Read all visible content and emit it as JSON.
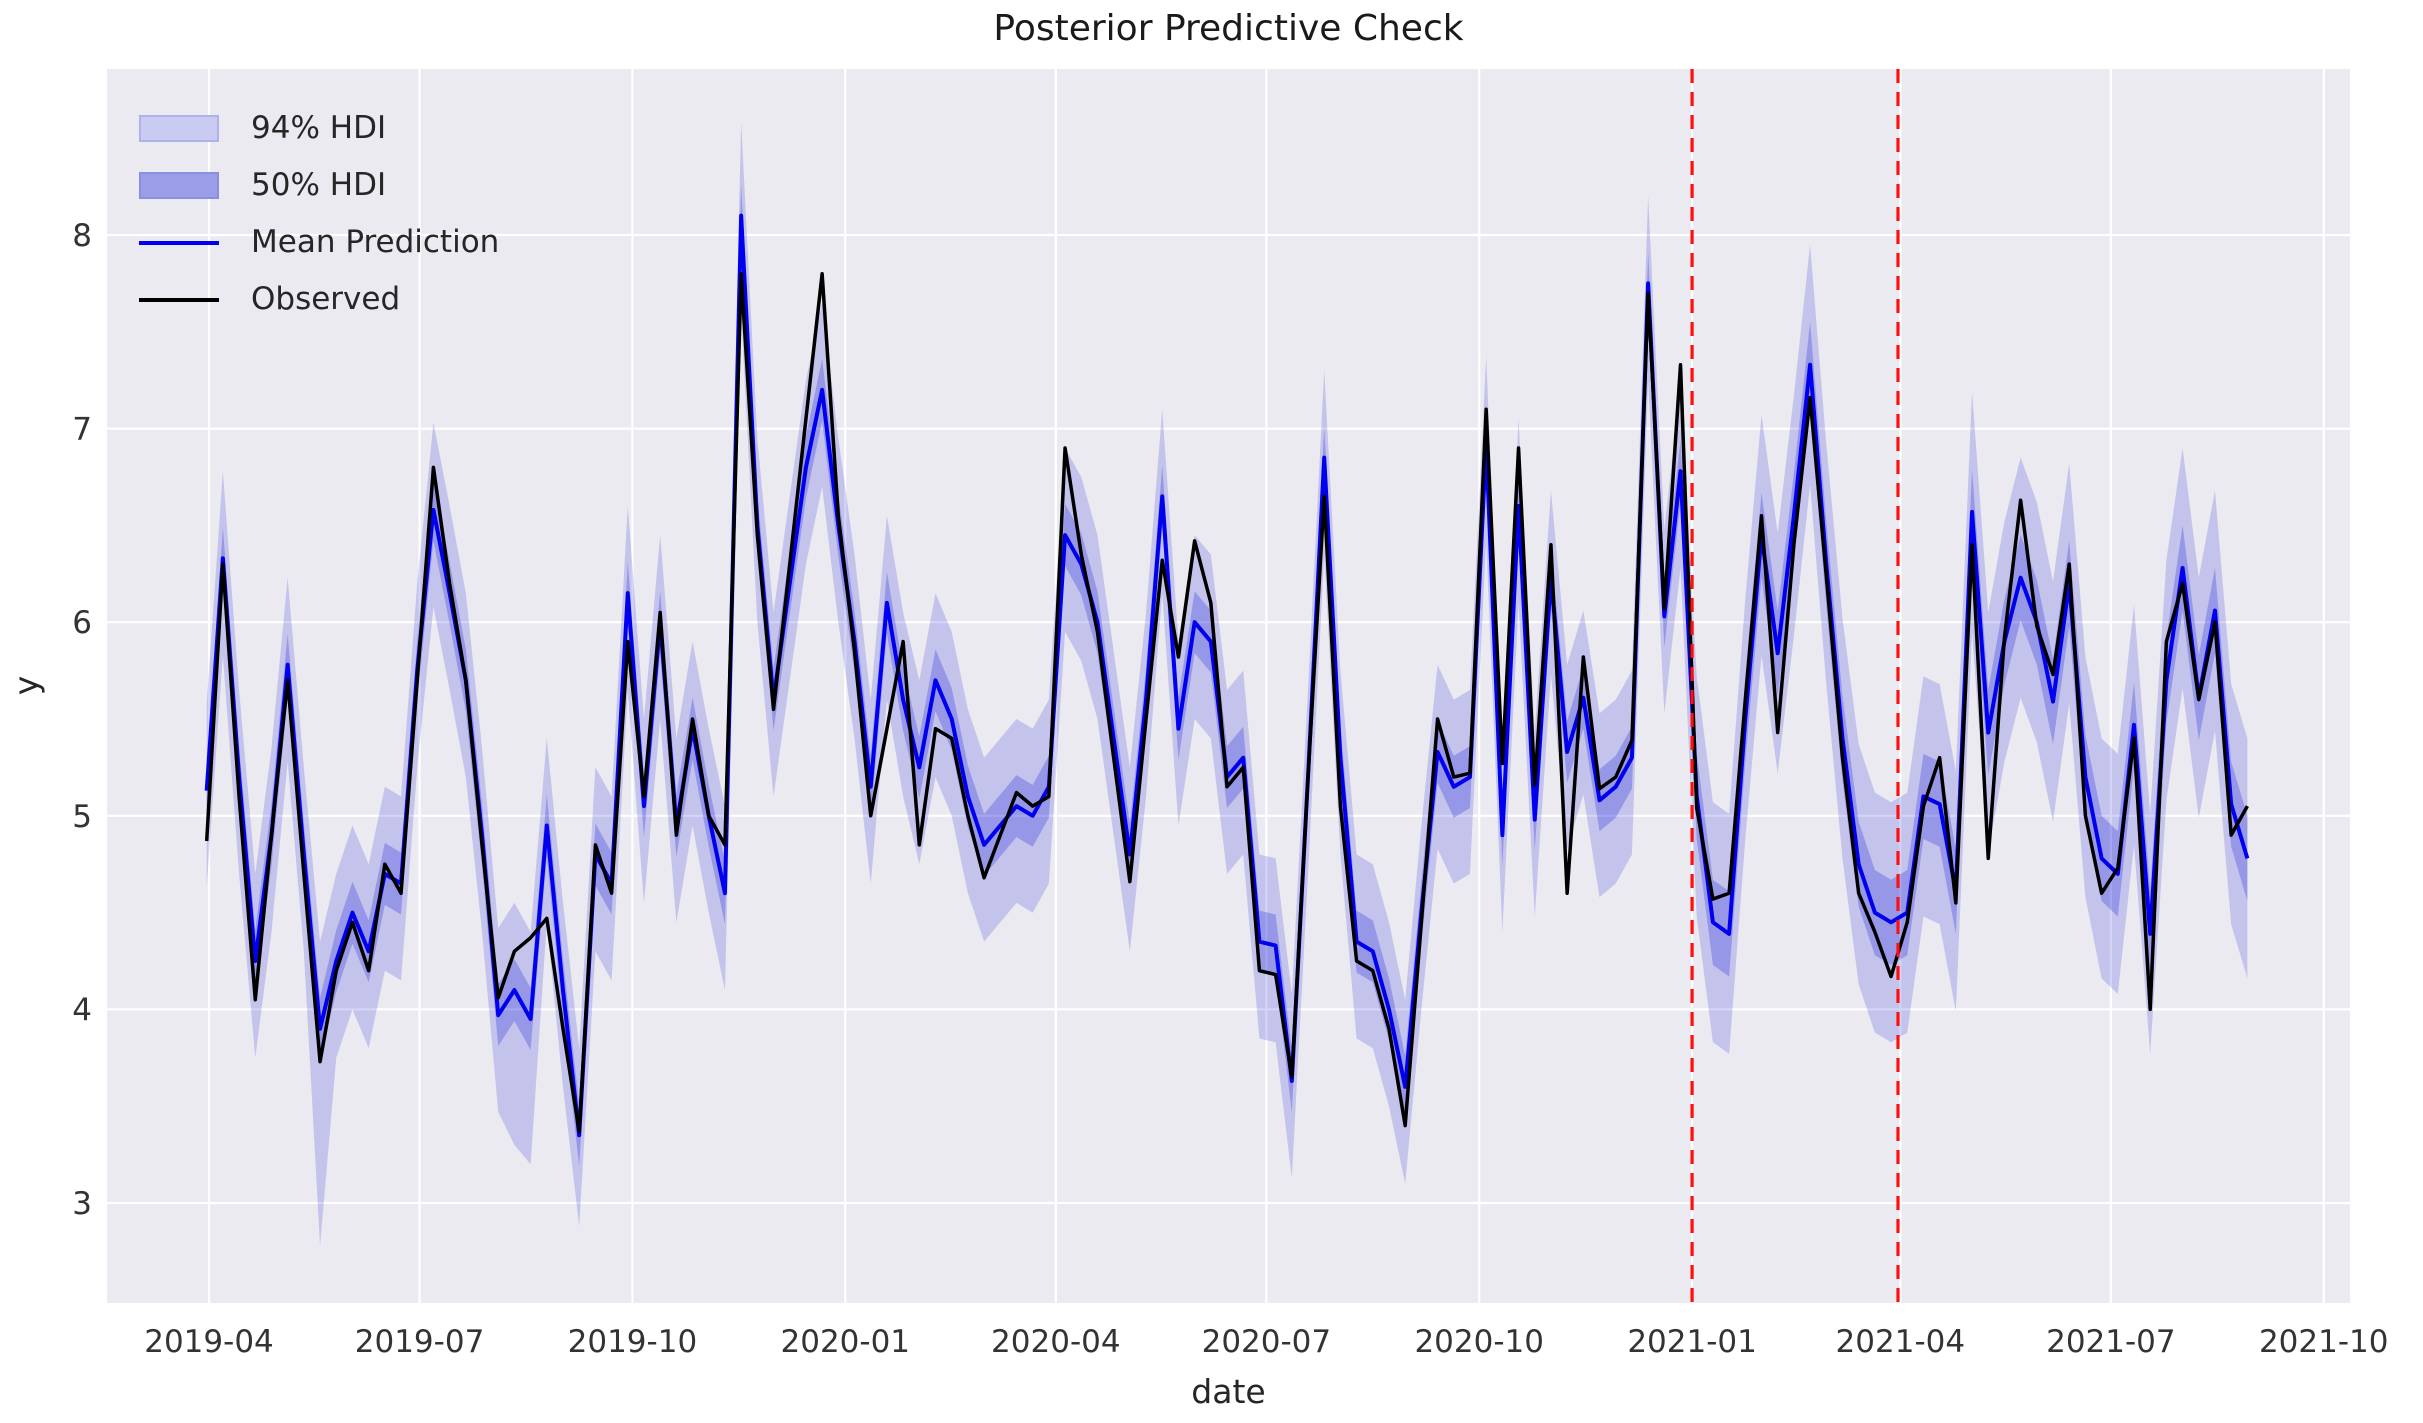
{
  "title": "Posterior Predictive Check",
  "xlabel": "date",
  "ylabel": "y",
  "legend": {
    "items": [
      {
        "label": "94% HDI",
        "swatch": "band-94-swatch"
      },
      {
        "label": "50% HDI",
        "swatch": "band-50-swatch"
      },
      {
        "label": "Mean Prediction",
        "swatch": "mean-line-swatch"
      },
      {
        "label": "Observed",
        "swatch": "observed-line-swatch"
      }
    ],
    "position": "upper left"
  },
  "colors": {
    "axes_background": "#eaeaf0",
    "grid": "#ffffff",
    "observed": "#000000",
    "mean_prediction": "#0000ee",
    "hdi_94_fill": "rgba(40,40,220,0.20)",
    "hdi_50_fill": "rgba(40,40,220,0.28)",
    "vline": "#ff0f0f",
    "tick_text": "#333333"
  },
  "chart_data": {
    "type": "line",
    "title": "Posterior Predictive Check",
    "xlabel": "date",
    "ylabel": "y",
    "grid": true,
    "legend_position": "upper left",
    "ylim": [
      2.48,
      8.84
    ],
    "x_tick_labels": [
      "2019-04",
      "2019-07",
      "2019-10",
      "2020-01",
      "2020-04",
      "2020-07",
      "2020-10",
      "2021-01",
      "2021-04",
      "2021-07",
      "2021-10"
    ],
    "y_tick_labels": [
      3,
      4,
      5,
      6,
      7,
      8
    ],
    "vlines": [
      "2021-01-01",
      "2021-03-31"
    ],
    "x": [
      "2019-03-31",
      "2019-04-07",
      "2019-04-14",
      "2019-04-21",
      "2019-04-28",
      "2019-05-05",
      "2019-05-12",
      "2019-05-19",
      "2019-05-26",
      "2019-06-02",
      "2019-06-09",
      "2019-06-16",
      "2019-06-23",
      "2019-06-30",
      "2019-07-07",
      "2019-07-14",
      "2019-07-21",
      "2019-07-28",
      "2019-08-04",
      "2019-08-11",
      "2019-08-18",
      "2019-08-25",
      "2019-09-01",
      "2019-09-08",
      "2019-09-15",
      "2019-09-22",
      "2019-09-29",
      "2019-10-06",
      "2019-10-13",
      "2019-10-20",
      "2019-10-27",
      "2019-11-03",
      "2019-11-10",
      "2019-11-17",
      "2019-11-24",
      "2019-12-01",
      "2019-12-08",
      "2019-12-15",
      "2019-12-22",
      "2019-12-29",
      "2020-01-05",
      "2020-01-12",
      "2020-01-19",
      "2020-01-26",
      "2020-02-02",
      "2020-02-09",
      "2020-02-16",
      "2020-02-23",
      "2020-03-01",
      "2020-03-08",
      "2020-03-15",
      "2020-03-22",
      "2020-03-29",
      "2020-04-05",
      "2020-04-12",
      "2020-04-19",
      "2020-04-26",
      "2020-05-03",
      "2020-05-10",
      "2020-05-17",
      "2020-05-24",
      "2020-05-31",
      "2020-06-07",
      "2020-06-14",
      "2020-06-21",
      "2020-06-28",
      "2020-07-05",
      "2020-07-12",
      "2020-07-19",
      "2020-07-26",
      "2020-08-02",
      "2020-08-09",
      "2020-08-16",
      "2020-08-23",
      "2020-08-30",
      "2020-09-06",
      "2020-09-13",
      "2020-09-20",
      "2020-09-27",
      "2020-10-04",
      "2020-10-11",
      "2020-10-18",
      "2020-10-25",
      "2020-11-01",
      "2020-11-08",
      "2020-11-15",
      "2020-11-22",
      "2020-11-29",
      "2020-12-06",
      "2020-12-13",
      "2020-12-20",
      "2020-12-27",
      "2021-01-03",
      "2021-01-10",
      "2021-01-17",
      "2021-01-24",
      "2021-01-31",
      "2021-02-07",
      "2021-02-14",
      "2021-02-21",
      "2021-02-28",
      "2021-03-07",
      "2021-03-14",
      "2021-03-21",
      "2021-03-28",
      "2021-04-04",
      "2021-04-11",
      "2021-04-18",
      "2021-04-25",
      "2021-05-02",
      "2021-05-09",
      "2021-05-16",
      "2021-05-23",
      "2021-05-30",
      "2021-06-06",
      "2021-06-13",
      "2021-06-20",
      "2021-06-27",
      "2021-07-04",
      "2021-07-11",
      "2021-07-18",
      "2021-07-25",
      "2021-08-01",
      "2021-08-08",
      "2021-08-15",
      "2021-08-22",
      "2021-08-29"
    ],
    "series": [
      {
        "name": "Observed",
        "values": [
          4.87,
          6.3,
          5.1,
          4.05,
          4.9,
          5.7,
          4.7,
          3.73,
          4.2,
          4.45,
          4.2,
          4.75,
          4.6,
          5.7,
          6.8,
          6.2,
          5.7,
          4.85,
          4.06,
          4.3,
          4.37,
          4.47,
          3.9,
          3.37,
          4.85,
          4.6,
          5.9,
          5.1,
          6.05,
          4.9,
          5.5,
          5.0,
          4.85,
          7.8,
          6.45,
          5.55,
          6.3,
          7.05,
          7.8,
          6.55,
          5.85,
          5.0,
          5.45,
          5.9,
          4.85,
          5.45,
          5.4,
          5.0,
          4.68,
          4.9,
          5.12,
          5.05,
          5.1,
          6.9,
          6.35,
          5.95,
          5.3,
          4.66,
          5.5,
          6.32,
          5.82,
          6.42,
          6.1,
          5.15,
          5.25,
          4.2,
          4.18,
          3.65,
          5.2,
          6.65,
          5.05,
          4.25,
          4.2,
          3.9,
          3.4,
          4.45,
          5.5,
          5.2,
          5.22,
          7.1,
          5.27,
          6.9,
          5.16,
          6.4,
          4.6,
          5.82,
          5.14,
          5.2,
          5.39,
          7.7,
          6.07,
          7.33,
          5.04,
          4.57,
          4.6,
          5.6,
          6.55,
          5.43,
          6.4,
          7.16,
          6.24,
          5.3,
          4.6,
          4.4,
          4.17,
          4.45,
          5.05,
          5.3,
          4.55,
          6.4,
          4.78,
          5.92,
          6.63,
          5.98,
          5.73,
          6.3,
          5.0,
          4.6,
          4.73,
          5.4,
          4.0,
          5.9,
          6.2,
          5.6,
          6.0,
          4.9,
          5.05
        ]
      },
      {
        "name": "Mean Prediction",
        "values": [
          5.13,
          6.33,
          5.2,
          4.25,
          4.9,
          5.78,
          4.8,
          3.9,
          4.25,
          4.5,
          4.3,
          4.7,
          4.65,
          5.75,
          6.58,
          6.15,
          5.7,
          4.9,
          3.97,
          4.1,
          3.95,
          4.95,
          4.1,
          3.35,
          4.8,
          4.65,
          6.15,
          5.05,
          6.0,
          4.95,
          5.45,
          5.0,
          4.6,
          8.1,
          6.5,
          5.6,
          6.2,
          6.8,
          7.2,
          6.5,
          5.9,
          5.15,
          6.1,
          5.6,
          5.25,
          5.7,
          5.5,
          5.1,
          4.85,
          4.95,
          5.05,
          5.0,
          5.15,
          6.45,
          6.3,
          6.0,
          5.4,
          4.8,
          5.6,
          6.65,
          5.45,
          6.0,
          5.9,
          5.2,
          5.3,
          4.35,
          4.33,
          3.63,
          5.2,
          6.85,
          5.3,
          4.35,
          4.3,
          4.0,
          3.6,
          4.5,
          5.33,
          5.15,
          5.2,
          6.92,
          4.9,
          6.6,
          4.98,
          6.23,
          5.33,
          5.61,
          5.08,
          5.15,
          5.3,
          7.75,
          6.03,
          6.78,
          5.1,
          4.45,
          4.39,
          5.5,
          6.45,
          5.84,
          6.55,
          7.33,
          6.3,
          5.4,
          4.75,
          4.5,
          4.45,
          4.5,
          5.1,
          5.06,
          4.61,
          6.57,
          5.43,
          5.9,
          6.23,
          6.0,
          5.59,
          6.2,
          5.2,
          4.78,
          4.7,
          5.47,
          4.39,
          5.7,
          6.28,
          5.61,
          6.06,
          5.06,
          4.78
        ]
      },
      {
        "name": "94% HDI upper",
        "values": [
          5.58,
          6.78,
          5.65,
          4.7,
          5.35,
          6.23,
          5.25,
          4.35,
          4.7,
          4.95,
          4.75,
          5.15,
          5.1,
          6.2,
          7.03,
          6.6,
          6.15,
          5.35,
          4.42,
          4.55,
          4.4,
          5.4,
          4.55,
          3.8,
          5.25,
          5.1,
          6.6,
          5.5,
          6.45,
          5.4,
          5.9,
          5.45,
          5.05,
          8.58,
          6.95,
          6.05,
          6.65,
          7.25,
          7.65,
          6.95,
          6.35,
          5.6,
          6.55,
          6.05,
          5.7,
          6.15,
          5.95,
          5.55,
          5.3,
          5.4,
          5.5,
          5.45,
          5.6,
          6.9,
          6.75,
          6.45,
          5.85,
          5.25,
          6.05,
          7.1,
          5.9,
          6.45,
          6.35,
          5.65,
          5.75,
          4.8,
          4.78,
          4.08,
          5.65,
          7.3,
          5.75,
          4.8,
          4.75,
          4.45,
          4.05,
          4.95,
          5.78,
          5.6,
          5.65,
          7.37,
          5.35,
          7.05,
          5.43,
          6.68,
          5.78,
          6.06,
          5.53,
          5.6,
          5.75,
          8.2,
          6.48,
          7.23,
          5.72,
          5.07,
          5.01,
          6.12,
          7.07,
          6.46,
          7.17,
          7.95,
          6.92,
          6.02,
          5.37,
          5.12,
          5.07,
          5.12,
          5.72,
          5.68,
          5.23,
          7.19,
          6.05,
          6.52,
          6.85,
          6.62,
          6.21,
          6.82,
          5.82,
          5.4,
          5.32,
          6.09,
          5.01,
          6.32,
          6.9,
          6.23,
          6.68,
          5.68,
          5.4
        ]
      },
      {
        "name": "94% HDI lower",
        "values": [
          4.63,
          5.83,
          4.7,
          3.75,
          4.4,
          5.28,
          4.3,
          2.78,
          3.75,
          4.0,
          3.8,
          4.2,
          4.15,
          5.25,
          6.08,
          5.65,
          5.2,
          4.4,
          3.47,
          3.3,
          3.2,
          4.45,
          3.6,
          2.88,
          4.3,
          4.15,
          5.65,
          4.55,
          5.5,
          4.45,
          4.95,
          4.5,
          4.1,
          7.6,
          6.0,
          5.1,
          5.7,
          6.3,
          6.7,
          6.0,
          5.4,
          4.65,
          5.6,
          5.1,
          4.75,
          5.2,
          5.0,
          4.6,
          4.35,
          4.45,
          4.55,
          4.5,
          4.65,
          5.95,
          5.8,
          5.5,
          4.9,
          4.3,
          5.1,
          6.15,
          4.95,
          5.5,
          5.4,
          4.7,
          4.8,
          3.85,
          3.83,
          3.13,
          4.7,
          6.35,
          4.8,
          3.85,
          3.8,
          3.5,
          3.1,
          4.0,
          4.83,
          4.65,
          4.7,
          6.42,
          4.4,
          6.1,
          4.48,
          5.73,
          4.83,
          5.11,
          4.58,
          4.65,
          4.8,
          7.25,
          5.53,
          6.28,
          4.48,
          3.83,
          3.77,
          4.88,
          5.83,
          5.22,
          5.93,
          6.71,
          5.68,
          4.78,
          4.13,
          3.88,
          3.83,
          3.88,
          4.48,
          4.44,
          3.99,
          5.95,
          4.81,
          5.28,
          5.61,
          5.38,
          4.97,
          5.58,
          4.58,
          4.16,
          4.08,
          4.85,
          3.77,
          5.08,
          5.66,
          4.99,
          5.44,
          4.44,
          4.16
        ]
      },
      {
        "name": "50% HDI upper",
        "values": [
          5.29,
          6.49,
          5.36,
          4.41,
          5.06,
          5.94,
          4.96,
          4.06,
          4.41,
          4.66,
          4.46,
          4.86,
          4.81,
          5.91,
          6.74,
          6.31,
          5.86,
          5.06,
          4.13,
          4.26,
          4.11,
          5.11,
          4.26,
          3.51,
          4.96,
          4.81,
          6.31,
          5.21,
          6.16,
          5.11,
          5.61,
          5.16,
          4.76,
          8.26,
          6.66,
          5.76,
          6.36,
          6.96,
          7.36,
          6.66,
          6.06,
          5.31,
          6.26,
          5.76,
          5.41,
          5.86,
          5.66,
          5.26,
          5.01,
          5.11,
          5.21,
          5.16,
          5.31,
          6.61,
          6.46,
          6.16,
          5.56,
          4.96,
          5.76,
          6.81,
          5.61,
          6.16,
          6.06,
          5.36,
          5.46,
          4.51,
          4.49,
          3.79,
          5.36,
          7.01,
          5.46,
          4.51,
          4.46,
          4.16,
          3.76,
          4.66,
          5.49,
          5.31,
          5.36,
          7.08,
          5.06,
          6.76,
          5.14,
          6.39,
          5.49,
          5.77,
          5.24,
          5.31,
          5.46,
          7.91,
          6.19,
          6.94,
          5.32,
          4.67,
          4.61,
          5.72,
          6.67,
          6.06,
          6.77,
          7.55,
          6.52,
          5.62,
          4.97,
          4.72,
          4.67,
          4.72,
          5.32,
          5.28,
          4.83,
          6.79,
          5.65,
          6.12,
          6.45,
          6.22,
          5.81,
          6.42,
          5.42,
          5.0,
          4.92,
          5.69,
          4.61,
          5.92,
          6.5,
          5.83,
          6.28,
          5.28,
          5.0
        ]
      },
      {
        "name": "50% HDI lower",
        "values": [
          4.97,
          6.17,
          5.04,
          4.09,
          4.74,
          5.62,
          4.64,
          3.74,
          4.09,
          4.34,
          4.14,
          4.54,
          4.49,
          5.59,
          6.42,
          5.99,
          5.54,
          4.74,
          3.81,
          3.94,
          3.79,
          4.79,
          3.94,
          3.19,
          4.64,
          4.49,
          5.99,
          4.89,
          5.84,
          4.79,
          5.29,
          4.84,
          4.44,
          7.94,
          6.34,
          5.44,
          6.04,
          6.64,
          7.04,
          6.34,
          5.74,
          4.99,
          5.94,
          5.44,
          5.09,
          5.54,
          5.34,
          4.94,
          4.69,
          4.79,
          4.89,
          4.84,
          4.99,
          6.29,
          6.14,
          5.84,
          5.24,
          4.64,
          5.44,
          6.49,
          5.29,
          5.84,
          5.74,
          5.04,
          5.14,
          4.19,
          4.17,
          3.47,
          5.04,
          6.69,
          5.14,
          4.19,
          4.14,
          3.84,
          3.44,
          4.34,
          5.17,
          4.99,
          5.04,
          6.76,
          4.74,
          6.44,
          4.82,
          6.07,
          5.17,
          5.45,
          4.92,
          4.99,
          5.14,
          7.59,
          5.87,
          6.62,
          4.88,
          4.23,
          4.17,
          5.28,
          6.23,
          5.62,
          6.33,
          7.11,
          6.08,
          5.18,
          4.53,
          4.28,
          4.23,
          4.28,
          4.88,
          4.84,
          4.39,
          6.35,
          5.21,
          5.68,
          6.01,
          5.78,
          5.37,
          5.98,
          4.98,
          4.56,
          4.48,
          5.25,
          4.17,
          5.48,
          6.06,
          5.39,
          5.84,
          4.84,
          4.56
        ]
      }
    ]
  }
}
